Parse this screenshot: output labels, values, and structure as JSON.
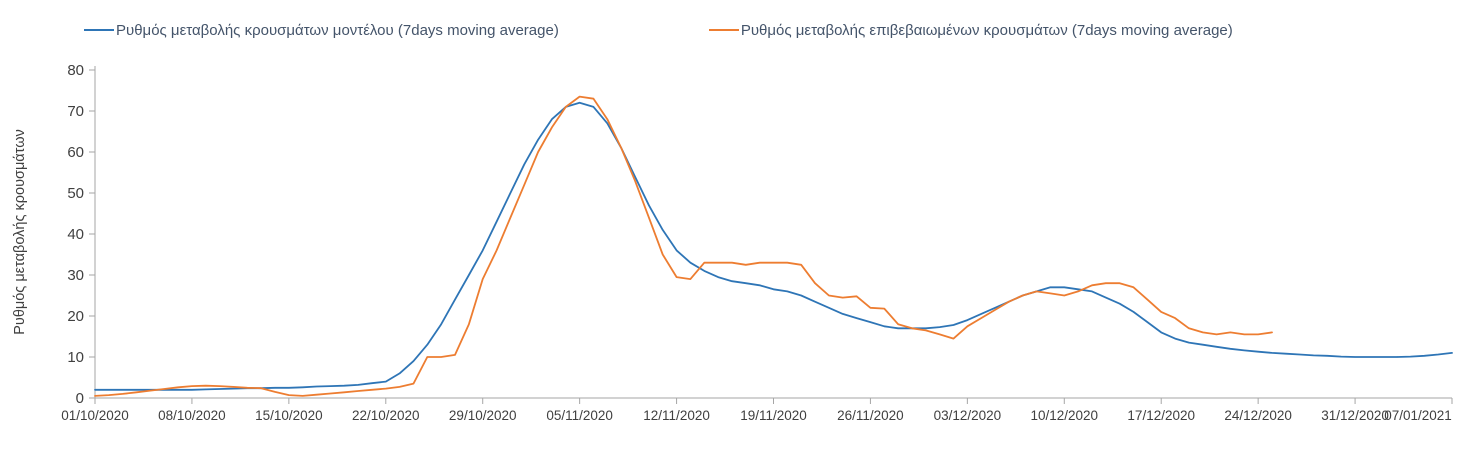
{
  "chart_data": {
    "type": "line",
    "title": "",
    "ylabel": "Ρυθμός μεταβολής κρουσμάτων",
    "ylim": [
      0,
      80
    ],
    "ytick_step": 10,
    "grid": false,
    "legend_position": "top",
    "axis_color": "#a6a6a6",
    "tick_color": "#404040",
    "n_points": 99,
    "x_tick_labels": [
      "01/10/2020",
      "08/10/2020",
      "15/10/2020",
      "22/10/2020",
      "29/10/2020",
      "05/11/2020",
      "12/11/2020",
      "19/11/2020",
      "26/11/2020",
      "03/12/2020",
      "10/12/2020",
      "17/12/2020",
      "24/12/2020",
      "31/12/2020",
      "07/01/2021"
    ],
    "x_tick_indices": [
      0,
      7,
      14,
      21,
      28,
      35,
      42,
      49,
      56,
      63,
      70,
      77,
      84,
      91,
      98
    ],
    "series": [
      {
        "name": "Ρυθμός μεταβολής κρουσμάτων μοντέλου (7days moving average)",
        "color": "#2e75b6",
        "values": [
          2,
          2,
          2,
          2,
          2,
          2,
          2,
          2,
          2.1,
          2.2,
          2.3,
          2.4,
          2.4,
          2.5,
          2.5,
          2.6,
          2.8,
          2.9,
          3,
          3.2,
          3.6,
          4,
          6,
          9,
          13,
          18,
          24,
          30,
          36,
          43,
          50,
          57,
          63,
          68,
          71,
          72,
          71,
          67,
          61,
          54,
          47,
          41,
          36,
          33,
          31,
          29.5,
          28.5,
          28,
          27.5,
          26.5,
          26,
          25,
          23.5,
          22,
          20.5,
          19.5,
          18.5,
          17.5,
          17,
          17,
          17,
          17.3,
          17.8,
          19,
          20.5,
          22,
          23.5,
          25,
          26,
          27,
          27,
          26.5,
          26,
          24.5,
          23,
          21,
          18.5,
          16,
          14.5,
          13.5,
          13,
          12.5,
          12,
          11.6,
          11.3,
          11,
          10.8,
          10.6,
          10.4,
          10.3,
          10.1,
          10,
          10,
          10,
          10,
          10.1,
          10.3,
          10.6,
          11
        ]
      },
      {
        "name": "Ρυθμός μεταβολής επιβεβαιωμένων κρουσμάτων (7days moving average)",
        "color": "#ed7d31",
        "values": [
          0.5,
          0.7,
          1,
          1.4,
          1.8,
          2.2,
          2.6,
          2.9,
          3,
          2.9,
          2.7,
          2.5,
          2.4,
          1.5,
          0.7,
          0.5,
          0.8,
          1.1,
          1.4,
          1.7,
          2,
          2.3,
          2.7,
          3.5,
          10,
          10,
          10.5,
          18,
          29,
          36,
          44,
          52,
          60,
          66,
          71,
          73.5,
          73,
          68,
          61,
          53,
          44,
          35,
          29.5,
          29,
          33,
          33,
          33,
          32.5,
          33,
          33,
          33,
          32.5,
          28,
          25,
          24.5,
          24.8,
          22,
          21.8,
          18,
          17,
          16.5,
          15.5,
          14.5,
          17.5,
          19.5,
          21.5,
          23.5,
          25,
          26,
          25.5,
          25,
          26,
          27.5,
          28,
          28,
          27,
          24,
          21,
          19.5,
          17,
          16,
          15.5,
          16,
          15.5,
          15.5,
          16,
          null,
          null,
          null,
          null,
          null,
          null,
          null,
          null,
          null,
          null,
          null,
          null,
          null
        ]
      }
    ]
  }
}
